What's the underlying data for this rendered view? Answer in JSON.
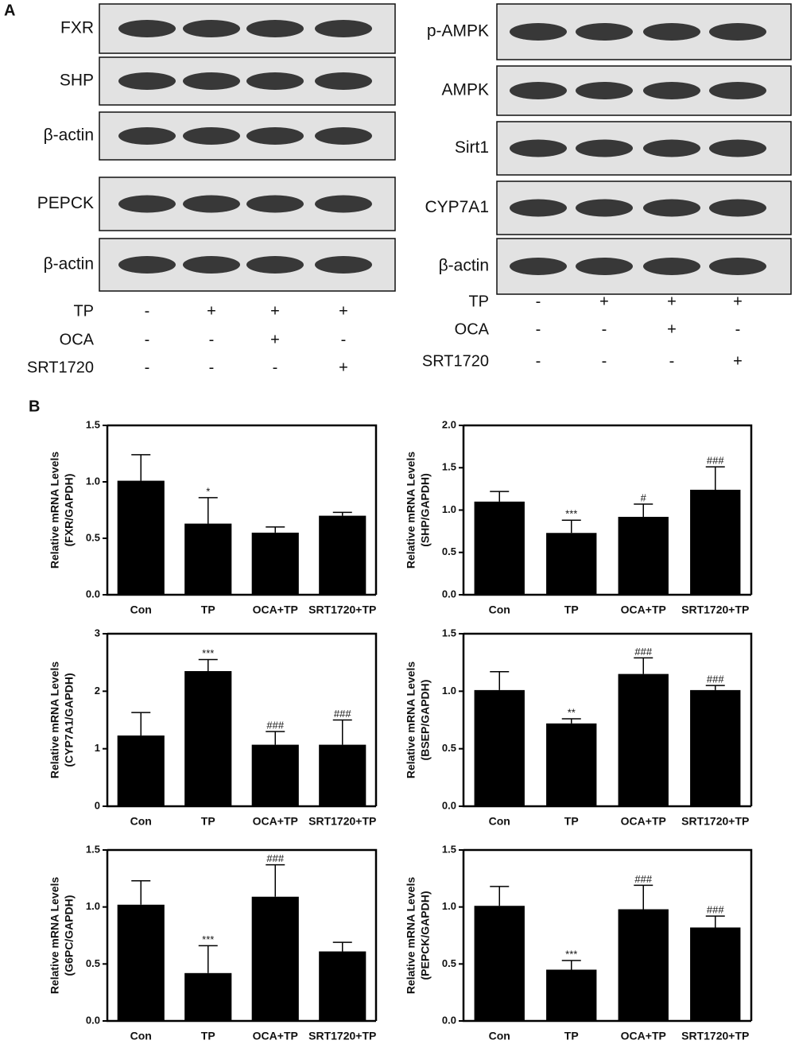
{
  "panel_labels": [
    "A",
    "B"
  ],
  "blots": [
    {
      "rows": [
        "FXR",
        "SHP",
        "β-actin",
        "PEPCK",
        "β-actin"
      ],
      "conditions": [
        {
          "name": "TP",
          "signs": [
            "-",
            "+",
            "+",
            "+"
          ]
        },
        {
          "name": "OCA",
          "signs": [
            "-",
            "-",
            "+",
            "-"
          ]
        },
        {
          "name": "SRT1720",
          "signs": [
            "-",
            "-",
            "-",
            "+"
          ]
        }
      ]
    },
    {
      "rows": [
        "p-AMPK",
        "AMPK",
        "Sirt1",
        "CYP7A1",
        "β-actin"
      ],
      "conditions": [
        {
          "name": "TP",
          "signs": [
            "-",
            "+",
            "+",
            "+"
          ]
        },
        {
          "name": "OCA",
          "signs": [
            "-",
            "-",
            "+",
            "-"
          ]
        },
        {
          "name": "SRT1720",
          "signs": [
            "-",
            "-",
            "-",
            "+"
          ]
        }
      ]
    }
  ],
  "chart_data": [
    {
      "type": "bar",
      "ylabel": [
        "Relative mRNA Levels",
        "(FXR/GAPDH)"
      ],
      "categories": [
        "Con",
        "TP",
        "OCA+TP",
        "SRT1720+TP"
      ],
      "values": [
        1.01,
        0.63,
        0.55,
        0.7
      ],
      "errors": [
        0.23,
        0.23,
        0.05,
        0.03
      ],
      "annotations": [
        null,
        "*",
        null,
        null
      ],
      "color": "#000000",
      "ylim": [
        0,
        1.5
      ],
      "yticks": [
        {
          "value": 0,
          "label": "0.0"
        },
        0.5,
        {
          "value": 1,
          "label": "1.0"
        },
        1.5
      ]
    },
    {
      "type": "bar",
      "ylabel": [
        "Relative mRNA Levels",
        "(SHP/GAPDH)"
      ],
      "categories": [
        "Con",
        "TP",
        "OCA+TP",
        "SRT1720+TP"
      ],
      "values": [
        1.1,
        0.73,
        0.92,
        1.24
      ],
      "errors": [
        0.12,
        0.15,
        0.15,
        0.27
      ],
      "annotations": [
        null,
        "***",
        "#",
        "###"
      ],
      "color": "#000000",
      "ylim": [
        0,
        2
      ],
      "yticks": [
        {
          "value": 0,
          "label": "0.0"
        },
        0.5,
        {
          "value": 1,
          "label": "1.0"
        },
        1.5,
        {
          "value": 2,
          "label": "2.0"
        }
      ]
    },
    {
      "type": "bar",
      "ylabel": [
        "Relative mRNA Levels",
        "(CYP7A1/GAPDH)"
      ],
      "categories": [
        "Con",
        "TP",
        "OCA+TP",
        "SRT1720+TP"
      ],
      "values": [
        1.23,
        2.35,
        1.07,
        1.07
      ],
      "errors": [
        0.4,
        0.2,
        0.23,
        0.43
      ],
      "annotations": [
        null,
        "***",
        "###",
        "###"
      ],
      "color": "#000000",
      "ylim": [
        0,
        3
      ],
      "yticks": [
        0,
        1,
        2,
        3
      ]
    },
    {
      "type": "bar",
      "ylabel": [
        "Relative mRNA Levels",
        "(BSEP/GAPDH)"
      ],
      "categories": [
        "Con",
        "TP",
        "OCA+TP",
        "SRT1720+TP"
      ],
      "values": [
        1.01,
        0.72,
        1.15,
        1.01
      ],
      "errors": [
        0.16,
        0.04,
        0.14,
        0.04
      ],
      "annotations": [
        null,
        "**",
        "###",
        "###"
      ],
      "color": "#000000",
      "ylim": [
        0,
        1.5
      ],
      "yticks": [
        {
          "value": 0,
          "label": "0.0"
        },
        0.5,
        {
          "value": 1,
          "label": "1.0"
        },
        1.5
      ]
    },
    {
      "type": "bar",
      "ylabel": [
        "Relative mRNA Levels",
        "(G6PC/GAPDH)"
      ],
      "categories": [
        "Con",
        "TP",
        "OCA+TP",
        "SRT1720+TP"
      ],
      "values": [
        1.02,
        0.42,
        1.09,
        0.61
      ],
      "errors": [
        0.21,
        0.24,
        0.28,
        0.08
      ],
      "annotations": [
        null,
        "***",
        "###",
        null
      ],
      "color": "#000000",
      "ylim": [
        0,
        1.5
      ],
      "yticks": [
        {
          "value": 0,
          "label": "0.0"
        },
        0.5,
        {
          "value": 1,
          "label": "1.0"
        },
        1.5
      ]
    },
    {
      "type": "bar",
      "ylabel": [
        "Relative mRNA Levels",
        "(PEPCK/GAPDH)"
      ],
      "categories": [
        "Con",
        "TP",
        "OCA+TP",
        "SRT1720+TP"
      ],
      "values": [
        1.01,
        0.45,
        0.98,
        0.82
      ],
      "errors": [
        0.17,
        0.08,
        0.21,
        0.1
      ],
      "annotations": [
        null,
        "***",
        "###",
        "###"
      ],
      "color": "#000000",
      "ylim": [
        0,
        1.5
      ],
      "yticks": [
        {
          "value": 0,
          "label": "0.0"
        },
        0.5,
        {
          "value": 1,
          "label": "1.0"
        },
        1.5
      ]
    }
  ]
}
